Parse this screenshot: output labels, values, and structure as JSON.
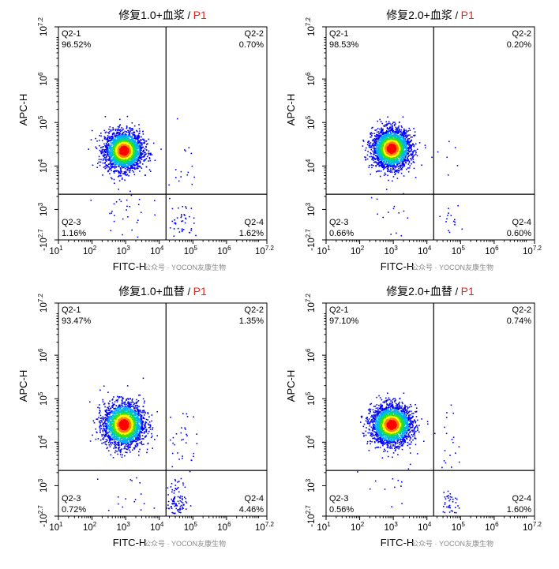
{
  "chart_data": [
    {
      "type": "scatter",
      "title_main": "修复1.0+血浆",
      "title_sep": " / ",
      "title_gate": "P1",
      "xlabel": "FITC-H",
      "ylabel": "APC-H",
      "x_ticks": [
        {
          "base": "10",
          "exp": "1"
        },
        {
          "base": "10",
          "exp": "2"
        },
        {
          "base": "10",
          "exp": "3"
        },
        {
          "base": "10",
          "exp": "4"
        },
        {
          "base": "10",
          "exp": "5"
        },
        {
          "base": "10",
          "exp": "6"
        },
        {
          "base": "10",
          "exp": "7.2"
        }
      ],
      "y_ticks": [
        {
          "base": "10",
          "exp": "7.2"
        },
        {
          "base": "10",
          "exp": "6"
        },
        {
          "base": "10",
          "exp": "5"
        },
        {
          "base": "10",
          "exp": "4"
        },
        {
          "base": "10",
          "exp": "3"
        },
        {
          "base": "-10",
          "exp": "2.7"
        }
      ],
      "quadrants": [
        {
          "name": "Q2-1",
          "percent": "96.52%"
        },
        {
          "name": "Q2-2",
          "percent": "0.70%"
        },
        {
          "name": "Q2-3",
          "percent": "1.16%"
        },
        {
          "name": "Q2-4",
          "percent": "1.62%"
        }
      ],
      "gate": {
        "x_log": 4.2,
        "y_log": 3.35
      },
      "populations": [
        {
          "x_log": 2.95,
          "y_log": 4.35,
          "spread_x": 0.28,
          "spread_y": 0.22,
          "weight": 0.965
        },
        {
          "x_log": 4.65,
          "y_log": 2.7,
          "spread_x": 0.18,
          "spread_y": 0.25,
          "weight": 0.016
        },
        {
          "x_log": 4.65,
          "y_log": 4.1,
          "spread_x": 0.25,
          "spread_y": 0.4,
          "weight": 0.007
        },
        {
          "x_log": 3.0,
          "y_log": 2.9,
          "spread_x": 0.35,
          "spread_y": 0.35,
          "weight": 0.012
        }
      ],
      "watermark": "公众号 · YOCON友康生物"
    },
    {
      "type": "scatter",
      "title_main": "修复2.0+血浆",
      "title_sep": " / ",
      "title_gate": "P1",
      "xlabel": "FITC-H",
      "ylabel": "APC-H",
      "x_ticks": [
        {
          "base": "10",
          "exp": "1"
        },
        {
          "base": "10",
          "exp": "2"
        },
        {
          "base": "10",
          "exp": "3"
        },
        {
          "base": "10",
          "exp": "4"
        },
        {
          "base": "10",
          "exp": "5"
        },
        {
          "base": "10",
          "exp": "6"
        },
        {
          "base": "10",
          "exp": "7.2"
        }
      ],
      "y_ticks": [
        {
          "base": "10",
          "exp": "7.2"
        },
        {
          "base": "10",
          "exp": "6"
        },
        {
          "base": "10",
          "exp": "5"
        },
        {
          "base": "10",
          "exp": "4"
        },
        {
          "base": "10",
          "exp": "3"
        },
        {
          "base": "-10",
          "exp": "2.7"
        }
      ],
      "quadrants": [
        {
          "name": "Q2-1",
          "percent": "98.53%"
        },
        {
          "name": "Q2-2",
          "percent": "0.20%"
        },
        {
          "name": "Q2-3",
          "percent": "0.66%"
        },
        {
          "name": "Q2-4",
          "percent": "0.60%"
        }
      ],
      "gate": {
        "x_log": 4.2,
        "y_log": 3.35
      },
      "populations": [
        {
          "x_log": 2.95,
          "y_log": 4.4,
          "spread_x": 0.28,
          "spread_y": 0.22,
          "weight": 0.985
        },
        {
          "x_log": 4.75,
          "y_log": 2.6,
          "spread_x": 0.12,
          "spread_y": 0.2,
          "weight": 0.006
        },
        {
          "x_log": 4.75,
          "y_log": 4.2,
          "spread_x": 0.2,
          "spread_y": 0.3,
          "weight": 0.002
        },
        {
          "x_log": 3.0,
          "y_log": 2.9,
          "spread_x": 0.35,
          "spread_y": 0.35,
          "weight": 0.007
        }
      ],
      "watermark": "公众号 · YOCON友康生物"
    },
    {
      "type": "scatter",
      "title_main": "修复1.0+血替",
      "title_sep": " / ",
      "title_gate": "P1",
      "xlabel": "FITC-H",
      "ylabel": "APC-H",
      "x_ticks": [
        {
          "base": "10",
          "exp": "1"
        },
        {
          "base": "10",
          "exp": "2"
        },
        {
          "base": "10",
          "exp": "3"
        },
        {
          "base": "10",
          "exp": "4"
        },
        {
          "base": "10",
          "exp": "5"
        },
        {
          "base": "10",
          "exp": "6"
        },
        {
          "base": "10",
          "exp": "7.2"
        }
      ],
      "y_ticks": [
        {
          "base": "10",
          "exp": "7.2"
        },
        {
          "base": "10",
          "exp": "6"
        },
        {
          "base": "10",
          "exp": "5"
        },
        {
          "base": "10",
          "exp": "4"
        },
        {
          "base": "10",
          "exp": "3"
        },
        {
          "base": "-10",
          "exp": "2.7"
        }
      ],
      "quadrants": [
        {
          "name": "Q2-1",
          "percent": "93.47%"
        },
        {
          "name": "Q2-2",
          "percent": "1.35%"
        },
        {
          "name": "Q2-3",
          "percent": "0.72%"
        },
        {
          "name": "Q2-4",
          "percent": "4.46%"
        }
      ],
      "gate": {
        "x_log": 4.2,
        "y_log": 3.35
      },
      "populations": [
        {
          "x_log": 2.95,
          "y_log": 4.4,
          "spread_x": 0.3,
          "spread_y": 0.25,
          "weight": 0.935
        },
        {
          "x_log": 4.55,
          "y_log": 2.6,
          "spread_x": 0.15,
          "spread_y": 0.25,
          "weight": 0.045
        },
        {
          "x_log": 4.65,
          "y_log": 4.0,
          "spread_x": 0.22,
          "spread_y": 0.45,
          "weight": 0.013
        },
        {
          "x_log": 3.0,
          "y_log": 2.9,
          "spread_x": 0.35,
          "spread_y": 0.35,
          "weight": 0.007
        }
      ],
      "watermark": "公众号 · YOCON友康生物"
    },
    {
      "type": "scatter",
      "title_main": "修复2.0+血替",
      "title_sep": " / ",
      "title_gate": "P1",
      "xlabel": "FITC-H",
      "ylabel": "APC-H",
      "x_ticks": [
        {
          "base": "10",
          "exp": "1"
        },
        {
          "base": "10",
          "exp": "2"
        },
        {
          "base": "10",
          "exp": "3"
        },
        {
          "base": "10",
          "exp": "4"
        },
        {
          "base": "10",
          "exp": "5"
        },
        {
          "base": "10",
          "exp": "6"
        },
        {
          "base": "10",
          "exp": "7.2"
        }
      ],
      "y_ticks": [
        {
          "base": "10",
          "exp": "7.2"
        },
        {
          "base": "10",
          "exp": "6"
        },
        {
          "base": "10",
          "exp": "5"
        },
        {
          "base": "10",
          "exp": "4"
        },
        {
          "base": "10",
          "exp": "3"
        },
        {
          "base": "-10",
          "exp": "2.7"
        }
      ],
      "quadrants": [
        {
          "name": "Q2-1",
          "percent": "97.10%"
        },
        {
          "name": "Q2-2",
          "percent": "0.74%"
        },
        {
          "name": "Q2-3",
          "percent": "0.56%"
        },
        {
          "name": "Q2-4",
          "percent": "1.60%"
        }
      ],
      "gate": {
        "x_log": 4.2,
        "y_log": 3.35
      },
      "populations": [
        {
          "x_log": 2.95,
          "y_log": 4.4,
          "spread_x": 0.3,
          "spread_y": 0.22,
          "weight": 0.971
        },
        {
          "x_log": 4.7,
          "y_log": 2.6,
          "spread_x": 0.12,
          "spread_y": 0.2,
          "weight": 0.016
        },
        {
          "x_log": 4.7,
          "y_log": 4.0,
          "spread_x": 0.2,
          "spread_y": 0.4,
          "weight": 0.007
        },
        {
          "x_log": 3.0,
          "y_log": 2.9,
          "spread_x": 0.35,
          "spread_y": 0.35,
          "weight": 0.006
        }
      ],
      "watermark": "公众号 · YOCON友康生物"
    }
  ],
  "colors": {
    "axis": "#000000",
    "gate_line": "#000000",
    "title": "#000000",
    "gate_label": "#e8231b",
    "dot_sparse": "#0000ff",
    "density_ramp": [
      "#0000ff",
      "#00aaff",
      "#00d0a0",
      "#40e000",
      "#ffff00",
      "#ff8000",
      "#ff0000"
    ],
    "watermark": "#8a8a8a"
  }
}
